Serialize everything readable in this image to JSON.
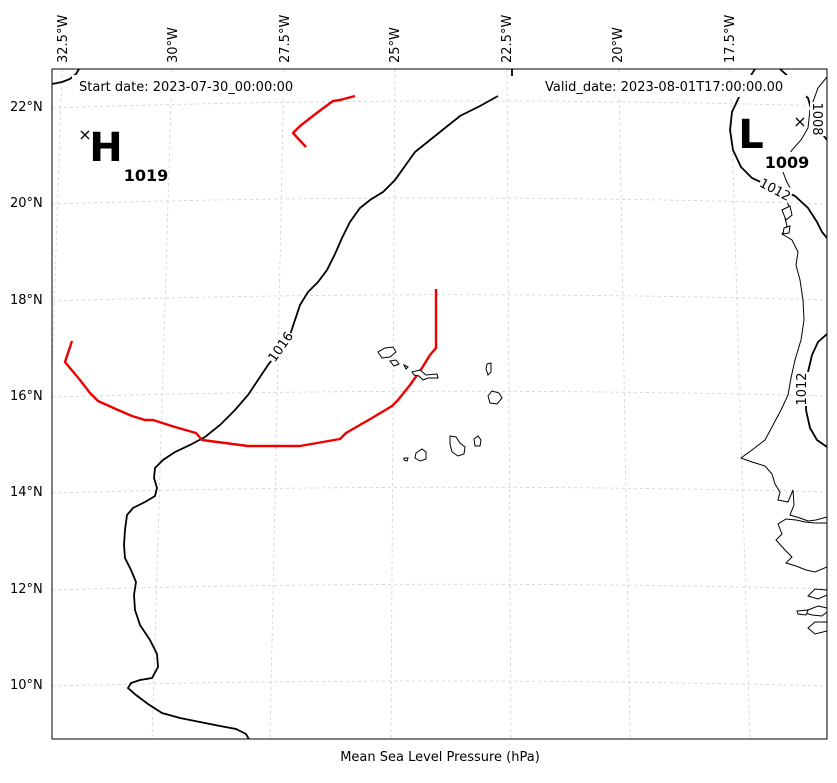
{
  "map": {
    "start_date_text": "Start date: 2023-07-30_00:00:00",
    "valid_date_text": "Valid_date: 2023-08-01T17:00:00.00",
    "footer_label": "Mean Sea Level Pressure (hPa)",
    "lon_labels": [
      "32.5°W",
      "30°W",
      "27.5°W",
      "25°W",
      "22.5°W",
      "20°W",
      "17.5°W"
    ],
    "lat_labels": [
      "22°N",
      "20°N",
      "18°N",
      "16°N",
      "14°N",
      "12°N",
      "10°N"
    ],
    "high": {
      "letter": "H",
      "value": "1019",
      "marker": "×"
    },
    "low": {
      "letter": "L",
      "value": "1009",
      "marker": "×"
    },
    "contour_labels": [
      "1016",
      "1012",
      "1012",
      "1008"
    ],
    "colors": {
      "isobar": "#000000",
      "front": "#ee0000",
      "gridline": "#cccccc",
      "coast": "#000000"
    }
  }
}
